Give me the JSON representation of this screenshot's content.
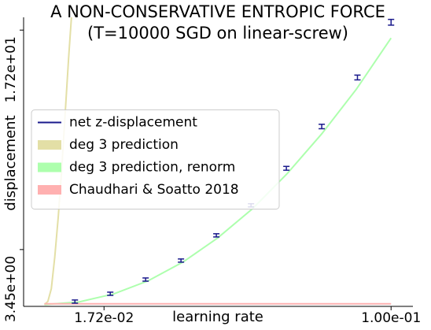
{
  "chart_data": {
    "type": "line",
    "title": [
      "A NON-CONSERVATIVE ENTROPIC FORCE",
      "(T=10000 SGD on linear-screw)"
    ],
    "xlabel": "learning rate",
    "ylabel": "displacement",
    "xlim": [
      -0.006,
      0.1063
    ],
    "ylim": [
      -0.11,
      18.0
    ],
    "xticks": [
      {
        "value": 0.0172,
        "label": "1.72e-02"
      },
      {
        "value": 0.1,
        "label": "1.00e-01"
      }
    ],
    "yticks": [
      {
        "value": 3.45,
        "label": "3.45e+00"
      },
      {
        "value": 17.2,
        "label": "1.72e+01"
      }
    ],
    "legend": "center left",
    "series": [
      {
        "name": "net z-displacement",
        "color": "#1a1a8c",
        "style": "errorbar",
        "x": [
          0.0088,
          0.019,
          0.0292,
          0.0394,
          0.0496,
          0.0596,
          0.0698,
          0.08,
          0.0903,
          0.1
        ],
        "values": [
          0.19,
          0.68,
          1.57,
          2.76,
          4.34,
          6.22,
          8.54,
          11.16,
          14.23,
          17.69
        ],
        "errors": [
          0.1,
          0.1,
          0.1,
          0.1,
          0.1,
          0.1,
          0.12,
          0.14,
          0.15,
          0.18
        ]
      },
      {
        "name": "deg 3 prediction",
        "color": "#e3dfa6",
        "style": "line",
        "x": [
          0,
          0.001,
          0.002,
          0.003,
          0.004,
          0.005,
          0.006,
          0.007,
          0.0078
        ],
        "values": [
          0,
          0.2,
          1.0,
          3.0,
          5.5,
          8.5,
          12.0,
          15.5,
          18.0
        ]
      },
      {
        "name": "deg 3 prediction, renorm",
        "color": "#adffad",
        "style": "line",
        "x": [
          0,
          0.01,
          0.02,
          0.03,
          0.04,
          0.05,
          0.06,
          0.07,
          0.08,
          0.09,
          0.1
        ],
        "values": [
          0,
          0.17,
          0.67,
          1.5,
          2.67,
          4.18,
          6.0,
          8.2,
          10.7,
          13.5,
          16.7
        ]
      },
      {
        "name": "Chaudhari & Soatto 2018",
        "color": "#ffb0b0",
        "style": "line",
        "x": [
          0,
          0.1
        ],
        "values": [
          0.05,
          0.05
        ]
      }
    ]
  }
}
